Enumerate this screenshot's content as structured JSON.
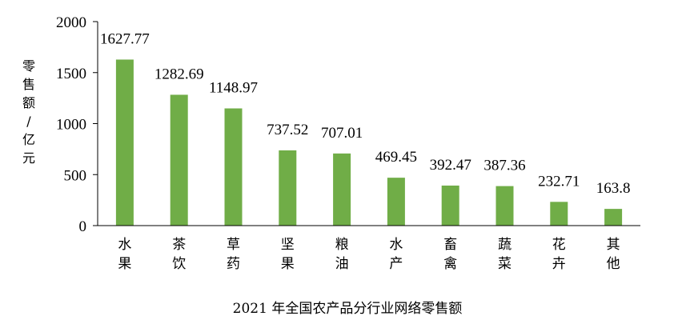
{
  "chart_data": {
    "type": "bar",
    "title": "2021 年全国农产品分行业网络零售额",
    "ylabel": "零售额/亿元",
    "xlabel": "",
    "categories": [
      "水果",
      "茶饮",
      "草药",
      "坚果",
      "粮油",
      "水产",
      "畜禽",
      "蔬菜",
      "花卉",
      "其他"
    ],
    "values": [
      1627.77,
      1282.69,
      1148.97,
      737.52,
      707.01,
      469.45,
      392.47,
      387.36,
      232.71,
      163.8
    ],
    "data_labels": [
      "1627.77",
      "1282.69",
      "1148.97",
      "737.52",
      "707.01",
      "469.45",
      "392.47",
      "387.36",
      "232.71",
      "163.8"
    ],
    "ylim": [
      0,
      2000
    ],
    "yticks": [
      0,
      500,
      1000,
      1500,
      2000
    ],
    "grid": false,
    "legend": "none",
    "bar_color": "#70ad47",
    "axis_color": "#000000"
  }
}
